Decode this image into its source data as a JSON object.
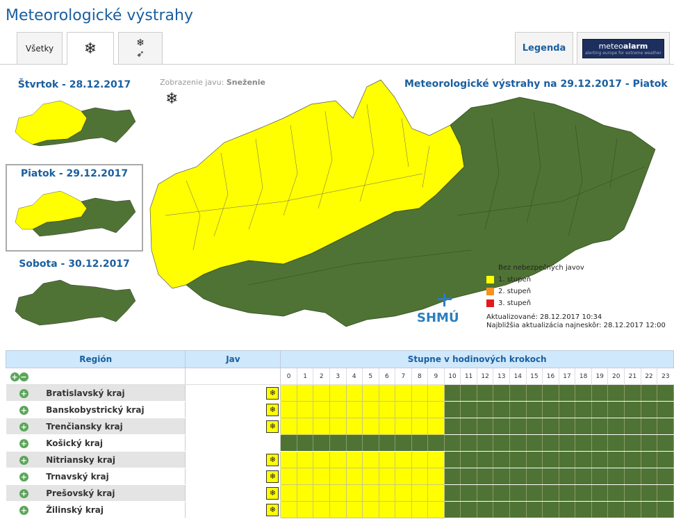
{
  "page_title": "Meteorologické výstrahy",
  "tabs": {
    "all": "Všetky",
    "snow_icon": "snowflake-icon",
    "snowwind_icon": "snow-wind-icon",
    "legend": "Legenda",
    "meteoalarm_a": "meteo",
    "meteoalarm_b": "alarm",
    "meteoalarm_sub": "alerting europe for extreme weather"
  },
  "days": [
    {
      "label": "Štvrtok - 28.12.2017"
    },
    {
      "label": "Piatok - 29.12.2017"
    },
    {
      "label": "Sobota - 30.12.2017"
    }
  ],
  "view_info": {
    "prefix": "Zobrazenie javu:",
    "value": "Sneženie"
  },
  "map_title": "Meteorologické výstrahy na 29.12.2017 - Piatok",
  "legend": [
    {
      "label": "Bez nebezpečných javov",
      "color": "#4f7334"
    },
    {
      "label": "1. stupeň",
      "color": "#ffff00"
    },
    {
      "label": "2. stupeň",
      "color": "#f7931e"
    },
    {
      "label": "3. stupeň",
      "color": "#e31a1c"
    }
  ],
  "logo": "SHMÚ",
  "updated": "Aktualizované: 28.12.2017 10:34",
  "next_update": "Najbližšia aktualizácia najneskôr: 28.12.2017 12:00",
  "table": {
    "col_region": "Región",
    "col_phenomenon": "Jav",
    "col_steps": "Stupne v hodinových krokoch",
    "hours": [
      "0",
      "1",
      "2",
      "3",
      "4",
      "5",
      "6",
      "7",
      "8",
      "9",
      "10",
      "11",
      "12",
      "13",
      "14",
      "15",
      "16",
      "17",
      "18",
      "19",
      "20",
      "21",
      "22",
      "23"
    ],
    "rows": [
      {
        "region": "Bratislavský kraj",
        "jav": "❄",
        "levels": [
          1,
          1,
          1,
          1,
          1,
          1,
          1,
          1,
          1,
          1,
          0,
          0,
          0,
          0,
          0,
          0,
          0,
          0,
          0,
          0,
          0,
          0,
          0,
          0
        ]
      },
      {
        "region": "Banskobystrický kraj",
        "jav": "❄",
        "levels": [
          1,
          1,
          1,
          1,
          1,
          1,
          1,
          1,
          1,
          1,
          0,
          0,
          0,
          0,
          0,
          0,
          0,
          0,
          0,
          0,
          0,
          0,
          0,
          0
        ]
      },
      {
        "region": "Trenčiansky kraj",
        "jav": "❄",
        "levels": [
          1,
          1,
          1,
          1,
          1,
          1,
          1,
          1,
          1,
          1,
          0,
          0,
          0,
          0,
          0,
          0,
          0,
          0,
          0,
          0,
          0,
          0,
          0,
          0
        ]
      },
      {
        "region": "Košický kraj",
        "jav": "",
        "levels": [
          0,
          0,
          0,
          0,
          0,
          0,
          0,
          0,
          0,
          0,
          0,
          0,
          0,
          0,
          0,
          0,
          0,
          0,
          0,
          0,
          0,
          0,
          0,
          0
        ]
      },
      {
        "region": "Nitriansky kraj",
        "jav": "❄",
        "levels": [
          1,
          1,
          1,
          1,
          1,
          1,
          1,
          1,
          1,
          1,
          0,
          0,
          0,
          0,
          0,
          0,
          0,
          0,
          0,
          0,
          0,
          0,
          0,
          0
        ]
      },
      {
        "region": "Trnavský kraj",
        "jav": "❄",
        "levels": [
          1,
          1,
          1,
          1,
          1,
          1,
          1,
          1,
          1,
          1,
          0,
          0,
          0,
          0,
          0,
          0,
          0,
          0,
          0,
          0,
          0,
          0,
          0,
          0
        ]
      },
      {
        "region": "Prešovský kraj",
        "jav": "❄",
        "levels": [
          1,
          1,
          1,
          1,
          1,
          1,
          1,
          1,
          1,
          1,
          0,
          0,
          0,
          0,
          0,
          0,
          0,
          0,
          0,
          0,
          0,
          0,
          0,
          0
        ]
      },
      {
        "region": "Žilinský kraj",
        "jav": "❄",
        "levels": [
          1,
          1,
          1,
          1,
          1,
          1,
          1,
          1,
          1,
          1,
          0,
          0,
          0,
          0,
          0,
          0,
          0,
          0,
          0,
          0,
          0,
          0,
          0,
          0
        ]
      }
    ]
  }
}
